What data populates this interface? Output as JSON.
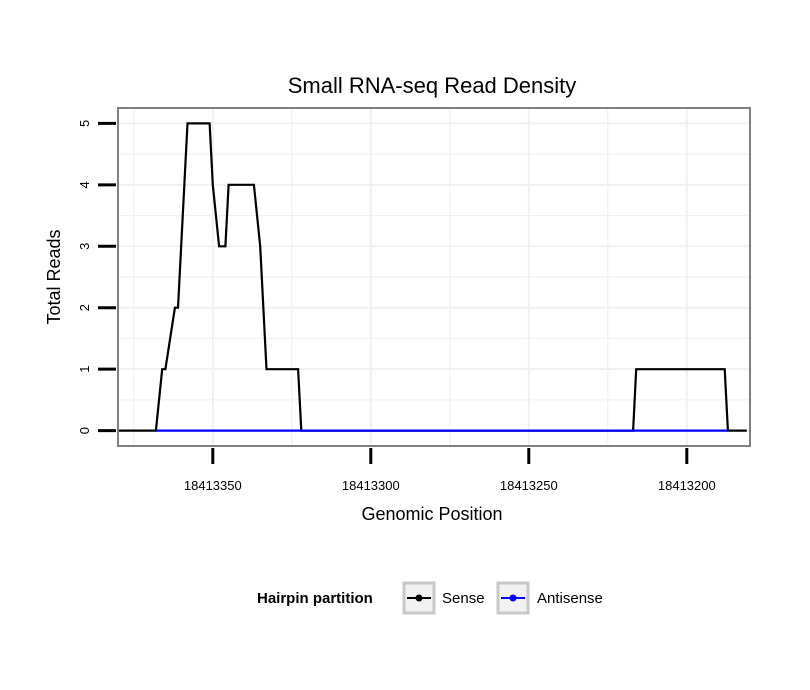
{
  "chart_data": {
    "type": "line",
    "title": "Small RNA-seq Read Density",
    "xlabel": "Genomic Position",
    "ylabel": "Total Reads",
    "x_reversed": true,
    "xlim": [
      18413180,
      18413380
    ],
    "ylim": [
      -0.25,
      5.25
    ],
    "x_ticks": [
      18413350,
      18413300,
      18413250,
      18413200
    ],
    "x_tick_labels": [
      "18413350",
      "18413300",
      "18413250",
      "18413200"
    ],
    "y_ticks": [
      0,
      1,
      2,
      3,
      4,
      5
    ],
    "y_tick_labels": [
      "0",
      "1",
      "2",
      "3",
      "4",
      "5"
    ],
    "grid": true,
    "legend": {
      "title": "Hairpin partition",
      "position": "bottom",
      "entries": [
        "Sense",
        "Antisense"
      ]
    },
    "series": [
      {
        "name": "Sense",
        "color": "#000000",
        "x": [
          18413380,
          18413368,
          18413366,
          18413365,
          18413362,
          18413361,
          18413358,
          18413356,
          18413351,
          18413350,
          18413348,
          18413346,
          18413345,
          18413343,
          18413337,
          18413335,
          18413333,
          18413323,
          18413322,
          18413217,
          18413216,
          18413188,
          18413187,
          18413181
        ],
        "y": [
          0,
          0,
          1,
          1,
          2,
          2,
          5,
          5,
          5,
          4,
          3,
          3,
          4,
          4,
          4,
          3,
          1,
          1,
          0,
          0,
          1,
          1,
          0,
          0
        ]
      },
      {
        "name": "Antisense",
        "color": "#0000ff",
        "x": [
          18413368,
          18413187
        ],
        "y": [
          0,
          0
        ]
      }
    ]
  }
}
